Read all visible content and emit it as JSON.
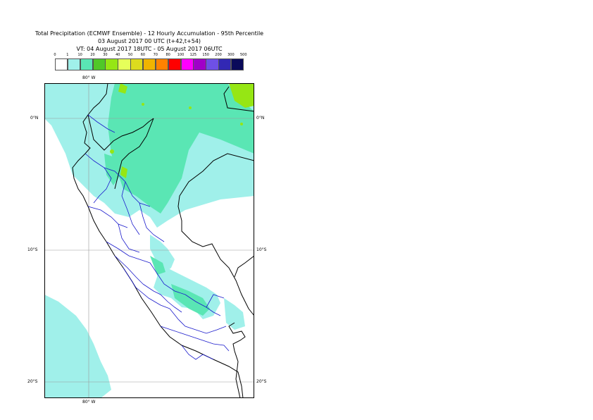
{
  "header": {
    "title_line1": "Total Precipitation (ECMWF Ensemble) - 12 Hourly Accumulation - 95th Percentile",
    "title_line2": "03 August 2017 00 UTC (t+42,t+54)",
    "title_line3": "VT: 04 August 2017 18UTC - 05 August 2017 06UTC"
  },
  "legend": {
    "ticks": [
      "0",
      "1",
      "10",
      "20",
      "30",
      "40",
      "50",
      "60",
      "70",
      "80",
      "100",
      "125",
      "150",
      "200",
      "300",
      "500"
    ],
    "colors": [
      "#ffffff",
      "#a0f0ea",
      "#5ae6b4",
      "#50c828",
      "#96e614",
      "#e6ff5a",
      "#dcdc1e",
      "#f0b400",
      "#ff8200",
      "#ff0000",
      "#ff00ff",
      "#a000c8",
      "#6e50e6",
      "#3228b4",
      "#0a0a5a"
    ]
  },
  "map": {
    "lon_label_top": "80° W",
    "lon_label_bottom": "80° W",
    "lat_labels": {
      "eq_left": "0°N",
      "eq_right": "0°N",
      "s10_left": "10°S",
      "s10_right": "10°S",
      "s20_left": "20°S",
      "s20_right": "20°S"
    },
    "colors": {
      "light_cyan": "#a0f0ea",
      "medium_green": "#5ae6b4",
      "yellow_green": "#96e614",
      "country_border": "#000000",
      "region_border": "#1a1acc"
    }
  }
}
